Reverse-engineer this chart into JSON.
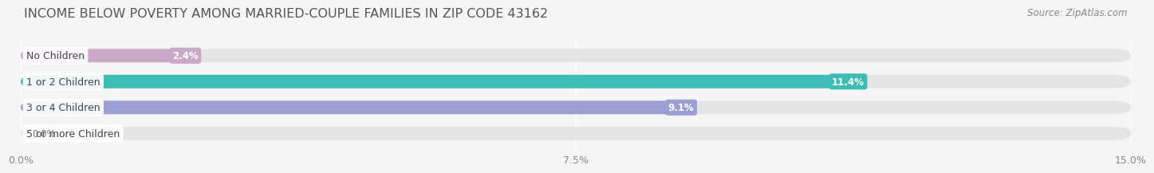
{
  "title": "INCOME BELOW POVERTY AMONG MARRIED-COUPLE FAMILIES IN ZIP CODE 43162",
  "source": "Source: ZipAtlas.com",
  "categories": [
    "No Children",
    "1 or 2 Children",
    "3 or 4 Children",
    "5 or more Children"
  ],
  "values": [
    2.4,
    11.4,
    9.1,
    0.0
  ],
  "bar_colors": [
    "#c9a8c8",
    "#3dbdb5",
    "#9b9fd4",
    "#f4a0b0"
  ],
  "value_label_colors": [
    "#888888",
    "#3dbdb5",
    "#9b9fd4",
    "#888888"
  ],
  "xlim": [
    0,
    15.0
  ],
  "xticks": [
    0.0,
    7.5,
    15.0
  ],
  "xticklabels": [
    "0.0%",
    "7.5%",
    "15.0%"
  ],
  "bar_height": 0.52,
  "background_color": "#f5f5f5",
  "bar_bg_color": "#e5e5e5",
  "title_fontsize": 11.5,
  "source_fontsize": 8.5,
  "tick_fontsize": 9,
  "value_label_fontsize": 8.5,
  "category_fontsize": 9
}
